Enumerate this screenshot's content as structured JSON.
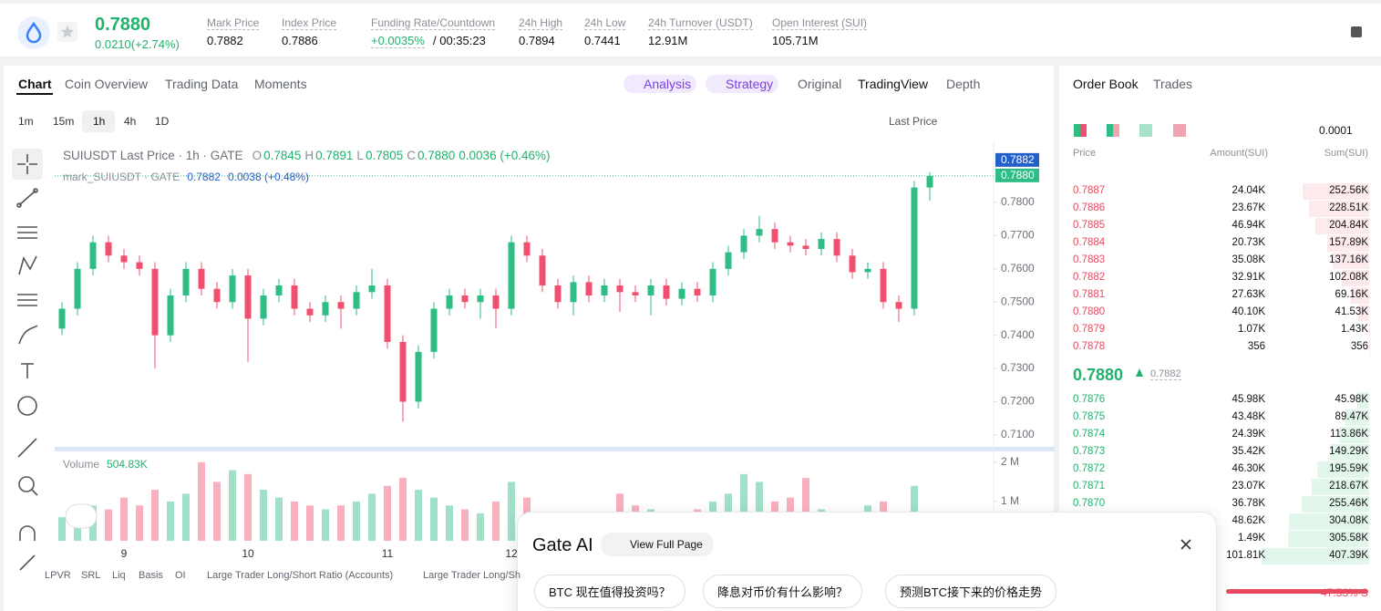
{
  "header": {
    "price": "0.7880",
    "change": "0.0210(+2.74%)",
    "stats": [
      {
        "label": "Mark Price",
        "value": "0.7882"
      },
      {
        "label": "Index Price",
        "value": "0.7886"
      },
      {
        "label": "Funding Rate/Countdown",
        "value": "+0.0035%",
        "value2": "/ 00:35:23"
      },
      {
        "label": "24h High",
        "value": "0.7894"
      },
      {
        "label": "24h Low",
        "value": "0.7441"
      },
      {
        "label": "24h Turnover (USDT)",
        "value": "12.91M"
      },
      {
        "label": "Open Interest (SUI)",
        "value": "105.71M"
      }
    ]
  },
  "tabs": [
    "Chart",
    "Coin Overview",
    "Trading Data",
    "Moments"
  ],
  "ai_tabs": [
    "Analysis",
    "Strategy"
  ],
  "view_tabs": [
    "Original",
    "TradingView",
    "Depth"
  ],
  "timeframes": [
    "1m",
    "15m",
    "1h",
    "4h",
    "1D"
  ],
  "price_source": "Last Price",
  "legend": {
    "title": "SUIUSDT Last Price · 1h · GATE",
    "ohlc": [
      {
        "k": "O",
        "v": "0.7845"
      },
      {
        "k": "H",
        "v": "0.7891"
      },
      {
        "k": "L",
        "v": "0.7805"
      },
      {
        "k": "C",
        "v": "0.7880"
      }
    ],
    "change": "0.0036 (+0.46%)",
    "mark_title": "mark_SUIUSDT · GATE",
    "mark_price": "0.7882",
    "mark_change": "0.0038 (+0.48%)",
    "volume_title": "Volume",
    "volume_value": "504.83K"
  },
  "price_tags": {
    "mark": "0.7882",
    "last": "0.7880"
  },
  "chart_data": {
    "type": "candlestick",
    "categories": [
      null,
      null,
      null,
      null,
      "9",
      null,
      null,
      null,
      null,
      null,
      null,
      null,
      "10",
      null,
      null,
      null,
      null,
      null,
      null,
      null,
      null,
      "11",
      null,
      null,
      null,
      null,
      null,
      null,
      null,
      "12",
      null,
      null,
      null,
      null,
      null,
      null,
      null,
      null,
      null,
      null,
      null,
      null,
      null,
      null,
      null,
      null,
      null,
      null,
      null,
      null,
      null,
      null,
      null,
      null,
      null,
      null,
      null
    ],
    "open": [
      0.742,
      0.748,
      0.76,
      0.768,
      0.764,
      0.762,
      0.76,
      0.74,
      0.752,
      0.76,
      0.754,
      0.75,
      0.758,
      0.745,
      0.752,
      0.755,
      0.748,
      0.746,
      0.75,
      0.748,
      0.753,
      0.755,
      0.738,
      0.72,
      0.735,
      0.748,
      0.752,
      0.75,
      0.752,
      0.748,
      0.768,
      0.764,
      0.755,
      0.75,
      0.756,
      0.752,
      0.755,
      0.753,
      0.752,
      0.755,
      0.751,
      0.754,
      0.752,
      0.76,
      0.765,
      0.77,
      0.772,
      0.768,
      0.767,
      0.766,
      0.769,
      0.764,
      0.759,
      0.76,
      0.75,
      0.748,
      0.7845
    ],
    "high": [
      0.75,
      0.762,
      0.77,
      0.77,
      0.766,
      0.764,
      0.762,
      0.754,
      0.762,
      0.762,
      0.756,
      0.76,
      0.76,
      0.754,
      0.757,
      0.757,
      0.75,
      0.752,
      0.752,
      0.755,
      0.76,
      0.757,
      0.74,
      0.737,
      0.75,
      0.754,
      0.754,
      0.754,
      0.754,
      0.77,
      0.77,
      0.766,
      0.757,
      0.758,
      0.758,
      0.757,
      0.757,
      0.755,
      0.757,
      0.757,
      0.756,
      0.756,
      0.762,
      0.767,
      0.772,
      0.776,
      0.774,
      0.77,
      0.769,
      0.771,
      0.771,
      0.766,
      0.762,
      0.762,
      0.752,
      0.7865,
      0.7891
    ],
    "low": [
      0.74,
      0.746,
      0.758,
      0.762,
      0.76,
      0.758,
      0.73,
      0.738,
      0.75,
      0.752,
      0.748,
      0.748,
      0.732,
      0.743,
      0.75,
      0.746,
      0.744,
      0.744,
      0.742,
      0.746,
      0.751,
      0.736,
      0.714,
      0.718,
      0.733,
      0.746,
      0.748,
      0.745,
      0.742,
      0.746,
      0.762,
      0.753,
      0.748,
      0.746,
      0.75,
      0.75,
      0.747,
      0.75,
      0.746,
      0.749,
      0.749,
      0.75,
      0.75,
      0.758,
      0.763,
      0.768,
      0.766,
      0.765,
      0.764,
      0.764,
      0.762,
      0.757,
      0.757,
      0.748,
      0.744,
      0.746,
      0.7805
    ],
    "close": [
      0.748,
      0.76,
      0.768,
      0.764,
      0.762,
      0.76,
      0.74,
      0.752,
      0.76,
      0.754,
      0.75,
      0.758,
      0.745,
      0.752,
      0.755,
      0.748,
      0.746,
      0.75,
      0.748,
      0.753,
      0.755,
      0.738,
      0.72,
      0.735,
      0.748,
      0.752,
      0.75,
      0.752,
      0.748,
      0.768,
      0.764,
      0.755,
      0.75,
      0.756,
      0.752,
      0.755,
      0.753,
      0.752,
      0.755,
      0.751,
      0.754,
      0.752,
      0.76,
      0.765,
      0.77,
      0.772,
      0.768,
      0.767,
      0.766,
      0.769,
      0.764,
      0.759,
      0.76,
      0.75,
      0.748,
      0.7845,
      0.788
    ],
    "volume": [
      600000,
      700000,
      900000,
      800000,
      1100000,
      900000,
      1300000,
      1000000,
      1200000,
      2000000,
      1500000,
      1800000,
      1700000,
      1300000,
      1100000,
      1000000,
      900000,
      800000,
      900000,
      1000000,
      1200000,
      1400000,
      1600000,
      1300000,
      1100000,
      900000,
      800000,
      700000,
      1000000,
      1500000,
      1100000,
      700000,
      600000,
      500000,
      600000,
      700000,
      1200000,
      900000,
      800000,
      500000,
      600000,
      800000,
      1000000,
      1200000,
      1700000,
      1500000,
      1000000,
      1100000,
      1600000,
      800000,
      700000,
      600000,
      900000,
      1000000,
      600000,
      1400000,
      504830
    ],
    "ylim": [
      0.7064,
      0.7984
    ],
    "yticks": [
      {
        "value": 0.71,
        "label": "0.7100"
      },
      {
        "value": 0.72,
        "label": "0.7200"
      },
      {
        "value": 0.73,
        "label": "0.7300"
      },
      {
        "value": 0.74,
        "label": "0.7400"
      },
      {
        "value": 0.75,
        "label": "0.7500"
      },
      {
        "value": 0.76,
        "label": "0.7600"
      },
      {
        "value": 0.77,
        "label": "0.7700"
      },
      {
        "value": 0.78,
        "label": "0.7800"
      }
    ],
    "volume_ylim": [
      0,
      2160000
    ],
    "volume_yticks": [
      {
        "value": 1000000,
        "label": "1 M"
      },
      {
        "value": 2000000,
        "label": "2 M"
      }
    ],
    "up_color": "#2ebd85",
    "down_color": "#f0506e"
  },
  "indicators": [
    "LPVR",
    "SRL",
    "Liq",
    "Basis",
    "OI",
    "Large Trader Long/Short Ratio (Accounts)",
    "Large Trader Long/Sh"
  ],
  "order_book": {
    "tabs": [
      "Order Book",
      "Trades"
    ],
    "precision": "0.0001",
    "columns": [
      "Price",
      "Amount(SUI)",
      "Sum(SUI)"
    ],
    "asks": [
      {
        "price": "0.7887",
        "amount": "24.04K",
        "sum": "252.56K",
        "sum_value": 252560
      },
      {
        "price": "0.7886",
        "amount": "23.67K",
        "sum": "228.51K",
        "sum_value": 228510
      },
      {
        "price": "0.7885",
        "amount": "46.94K",
        "sum": "204.84K",
        "sum_value": 204840
      },
      {
        "price": "0.7884",
        "amount": "20.73K",
        "sum": "157.89K",
        "sum_value": 157890
      },
      {
        "price": "0.7883",
        "amount": "35.08K",
        "sum": "137.16K",
        "sum_value": 137160
      },
      {
        "price": "0.7882",
        "amount": "32.91K",
        "sum": "102.08K",
        "sum_value": 102080
      },
      {
        "price": "0.7881",
        "amount": "27.63K",
        "sum": "69.16K",
        "sum_value": 69160
      },
      {
        "price": "0.7880",
        "amount": "40.10K",
        "sum": "41.53K",
        "sum_value": 41530
      },
      {
        "price": "0.7879",
        "amount": "1.07K",
        "sum": "1.43K",
        "sum_value": 1430
      },
      {
        "price": "0.7878",
        "amount": "356",
        "sum": "356",
        "sum_value": 356
      }
    ],
    "last_price": "0.7880",
    "mark_price": "0.7882",
    "bids": [
      {
        "price": "0.7876",
        "amount": "45.98K",
        "sum": "45.98K",
        "sum_value": 45980
      },
      {
        "price": "0.7875",
        "amount": "43.48K",
        "sum": "89.47K",
        "sum_value": 89470
      },
      {
        "price": "0.7874",
        "amount": "24.39K",
        "sum": "113.86K",
        "sum_value": 113860
      },
      {
        "price": "0.7873",
        "amount": "35.42K",
        "sum": "149.29K",
        "sum_value": 149290
      },
      {
        "price": "0.7872",
        "amount": "46.30K",
        "sum": "195.59K",
        "sum_value": 195590
      },
      {
        "price": "0.7871",
        "amount": "23.07K",
        "sum": "218.67K",
        "sum_value": 218670
      },
      {
        "price": "0.7870",
        "amount": "36.78K",
        "sum": "255.46K",
        "sum_value": 255460
      },
      {
        "price": null,
        "amount": "48.62K",
        "sum": "304.08K",
        "sum_value": 304080
      },
      {
        "price": null,
        "amount": "1.49K",
        "sum": "305.58K",
        "sum_value": 305580
      },
      {
        "price": null,
        "amount": "101.81K",
        "sum": "407.39K",
        "sum_value": 407390
      }
    ],
    "ratio": "47.53% S"
  },
  "ai_panel": {
    "title": "Gate AI",
    "button": "View Full Page",
    "suggestions": [
      "BTC 现在值得投资吗？",
      "降息对币价有什么影响？",
      "预测BTC接下来的价格走势"
    ]
  }
}
